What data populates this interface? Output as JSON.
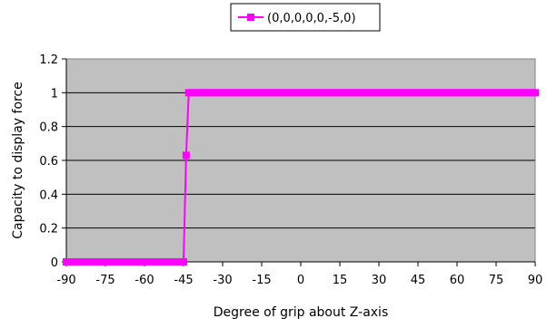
{
  "chart_data": {
    "type": "line",
    "title": "",
    "xlabel": "Degree of grip about Z-axis",
    "ylabel": "Capacity to display force",
    "xlim": [
      -90,
      90
    ],
    "ylim": [
      0,
      1.2
    ],
    "x_ticks": [
      -90,
      -75,
      -60,
      -45,
      -30,
      -15,
      0,
      15,
      30,
      45,
      60,
      75,
      90
    ],
    "y_ticks": [
      0,
      0.2,
      0.4,
      0.6,
      0.8,
      1,
      1.2
    ],
    "x_tick_labels": [
      "-90",
      "-75",
      "-60",
      "-45",
      "-30",
      "-15",
      "0",
      "15",
      "30",
      "45",
      "60",
      "75",
      "90"
    ],
    "y_tick_labels": [
      "0",
      "0.2",
      "0.4",
      "0.6",
      "0.8",
      "1",
      "1.2"
    ],
    "grid": true,
    "plot_background": "#c0c0c0",
    "legend_position": "top",
    "series": [
      {
        "name": "(0,0,0,0,0,-5,0)",
        "color": "#ff00ff",
        "marker": "square",
        "x": [
          -90,
          -89,
          -88,
          -87,
          -86,
          -85,
          -84,
          -83,
          -82,
          -81,
          -80,
          -79,
          -78,
          -77,
          -76,
          -75,
          -74,
          -73,
          -72,
          -71,
          -70,
          -69,
          -68,
          -67,
          -66,
          -65,
          -64,
          -63,
          -62,
          -61,
          -60,
          -59,
          -58,
          -57,
          -56,
          -55,
          -54,
          -53,
          -52,
          -51,
          -50,
          -49,
          -48,
          -47,
          -46,
          -45,
          -44,
          -43,
          -42,
          -41,
          -40,
          -39,
          -38,
          -37,
          -36,
          -35,
          -34,
          -33,
          -32,
          -31,
          -30,
          -29,
          -28,
          -27,
          -26,
          -25,
          -24,
          -23,
          -22,
          -21,
          -20,
          -19,
          -18,
          -17,
          -16,
          -15,
          -14,
          -13,
          -12,
          -11,
          -10,
          -9,
          -8,
          -7,
          -6,
          -5,
          -4,
          -3,
          -2,
          -1,
          0,
          1,
          2,
          3,
          4,
          5,
          6,
          7,
          8,
          9,
          10,
          11,
          12,
          13,
          14,
          15,
          16,
          17,
          18,
          19,
          20,
          21,
          22,
          23,
          24,
          25,
          26,
          27,
          28,
          29,
          30,
          31,
          32,
          33,
          34,
          35,
          36,
          37,
          38,
          39,
          40,
          41,
          42,
          43,
          44,
          45,
          46,
          47,
          48,
          49,
          50,
          51,
          52,
          53,
          54,
          55,
          56,
          57,
          58,
          59,
          60,
          61,
          62,
          63,
          64,
          65,
          66,
          67,
          68,
          69,
          70,
          71,
          72,
          73,
          74,
          75,
          76,
          77,
          78,
          79,
          80,
          81,
          82,
          83,
          84,
          85,
          86,
          87,
          88,
          89,
          90
        ],
        "y": [
          0,
          0,
          0,
          0,
          0,
          0,
          0,
          0,
          0,
          0,
          0,
          0,
          0,
          0,
          0,
          0,
          0,
          0,
          0,
          0,
          0,
          0,
          0,
          0,
          0,
          0,
          0,
          0,
          0,
          0,
          0,
          0,
          0,
          0,
          0,
          0,
          0,
          0,
          0,
          0,
          0,
          0,
          0,
          0,
          0,
          0,
          0.63,
          1,
          1,
          1,
          1,
          1,
          1,
          1,
          1,
          1,
          1,
          1,
          1,
          1,
          1,
          1,
          1,
          1,
          1,
          1,
          1,
          1,
          1,
          1,
          1,
          1,
          1,
          1,
          1,
          1,
          1,
          1,
          1,
          1,
          1,
          1,
          1,
          1,
          1,
          1,
          1,
          1,
          1,
          1,
          1,
          1,
          1,
          1,
          1,
          1,
          1,
          1,
          1,
          1,
          1,
          1,
          1,
          1,
          1,
          1,
          1,
          1,
          1,
          1,
          1,
          1,
          1,
          1,
          1,
          1,
          1,
          1,
          1,
          1,
          1,
          1,
          1,
          1,
          1,
          1,
          1,
          1,
          1,
          1,
          1,
          1,
          1,
          1,
          1,
          1,
          1,
          1,
          1,
          1,
          1,
          1,
          1,
          1,
          1,
          1,
          1,
          1,
          1,
          1,
          1,
          1,
          1,
          1,
          1,
          1,
          1,
          1,
          1,
          1,
          1,
          1,
          1,
          1,
          1,
          1,
          1,
          1,
          1,
          1,
          1,
          1,
          1,
          1,
          1,
          1,
          1,
          1,
          1,
          1,
          1
        ]
      }
    ]
  }
}
